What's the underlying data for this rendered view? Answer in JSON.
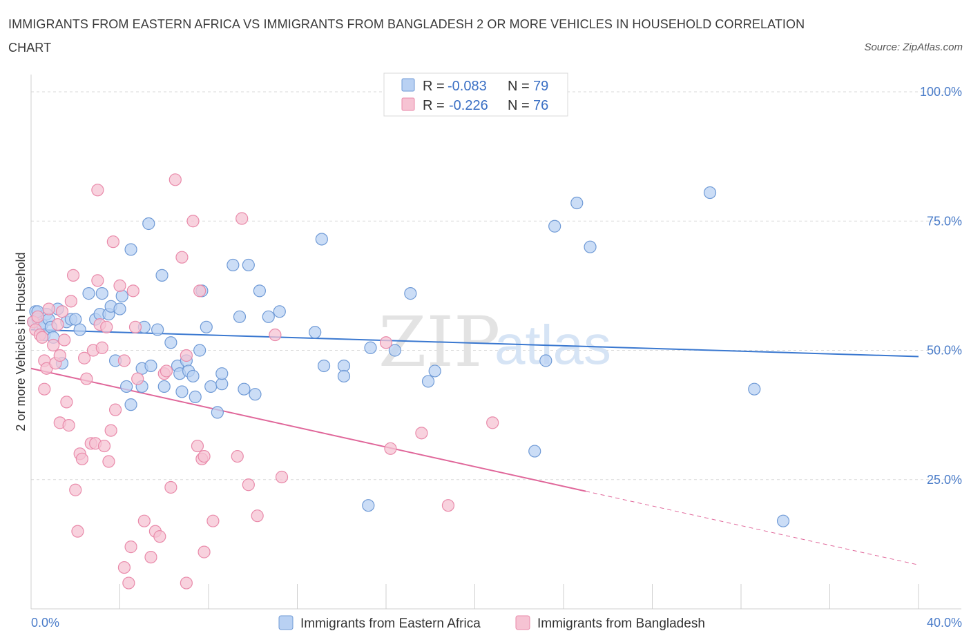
{
  "title": "IMMIGRANTS FROM EASTERN AFRICA VS IMMIGRANTS FROM BANGLADESH 2 OR MORE VEHICLES IN HOUSEHOLD CORRELATION CHART",
  "source": "Source: ZipAtlas.com",
  "watermark": {
    "part1": "ZIP",
    "part2": "atlas"
  },
  "legend": {
    "r_label": "R =",
    "n_label": "N =",
    "series": [
      {
        "r": "-0.083",
        "n": "79"
      },
      {
        "r": "-0.226",
        "n": "76"
      }
    ]
  },
  "colors": {
    "blue_fill": "#b9d1f3",
    "blue_stroke": "#6f9ad6",
    "blue_line": "#3a78d0",
    "pink_fill": "#f6c3d3",
    "pink_stroke": "#e98aaa",
    "pink_line": "#e0679a",
    "grid": "#d9d9d9",
    "axis_label": "#4a7cc9"
  },
  "chart_data": {
    "type": "scatter",
    "title": "IMMIGRANTS FROM EASTERN AFRICA VS IMMIGRANTS FROM BANGLADESH 2 OR MORE VEHICLES IN HOUSEHOLD CORRELATION CHART",
    "xlabel": "",
    "ylabel": "2 or more Vehicles in Household",
    "xlim": [
      0,
      40
    ],
    "ylim": [
      0,
      100
    ],
    "x_tick_labels": [
      "0.0%",
      "40.0%"
    ],
    "y_tick_labels": [
      "25.0%",
      "50.0%",
      "75.0%",
      "100.0%"
    ],
    "y_ticks": [
      25,
      50,
      75,
      100
    ],
    "legend_position": "top-center",
    "series": [
      {
        "name": "Immigrants from Eastern Africa",
        "r": -0.083,
        "n": 79,
        "trend": {
          "x": [
            0,
            40
          ],
          "y": [
            54.0,
            48.8
          ],
          "dashed_from": null
        },
        "points": [
          [
            0.1,
            55.5
          ],
          [
            0.2,
            57.5
          ],
          [
            0.3,
            56
          ],
          [
            0.4,
            54.5
          ],
          [
            0.5,
            55
          ],
          [
            0.6,
            53
          ],
          [
            0.7,
            57
          ],
          [
            0.8,
            56
          ],
          [
            0.9,
            54.5
          ],
          [
            1.0,
            52.5
          ],
          [
            1.2,
            58
          ],
          [
            1.4,
            47.5
          ],
          [
            1.6,
            55.5
          ],
          [
            1.8,
            56
          ],
          [
            2.0,
            56
          ],
          [
            2.2,
            54
          ],
          [
            2.6,
            61
          ],
          [
            2.9,
            56
          ],
          [
            3.1,
            57
          ],
          [
            3.2,
            61
          ],
          [
            3.5,
            57
          ],
          [
            3.6,
            58.5
          ],
          [
            3.8,
            48
          ],
          [
            4.0,
            58
          ],
          [
            4.1,
            60.5
          ],
          [
            4.3,
            43
          ],
          [
            4.5,
            39.5
          ],
          [
            4.5,
            69.5
          ],
          [
            5.0,
            46.5
          ],
          [
            5.0,
            43
          ],
          [
            5.1,
            54.5
          ],
          [
            5.3,
            74.5
          ],
          [
            5.4,
            47
          ],
          [
            5.7,
            54
          ],
          [
            5.9,
            64.5
          ],
          [
            6.0,
            43
          ],
          [
            6.3,
            51.5
          ],
          [
            6.6,
            47
          ],
          [
            6.7,
            45.5
          ],
          [
            6.8,
            42
          ],
          [
            7.0,
            48
          ],
          [
            7.1,
            46
          ],
          [
            7.3,
            45
          ],
          [
            7.4,
            41
          ],
          [
            7.6,
            50
          ],
          [
            7.7,
            61.5
          ],
          [
            7.9,
            54.5
          ],
          [
            8.1,
            43
          ],
          [
            8.4,
            38
          ],
          [
            8.6,
            43.5
          ],
          [
            8.6,
            45.5
          ],
          [
            9.1,
            66.5
          ],
          [
            9.4,
            56.5
          ],
          [
            9.6,
            42.5
          ],
          [
            9.8,
            66.5
          ],
          [
            10.1,
            41.5
          ],
          [
            10.3,
            61.5
          ],
          [
            10.7,
            56.5
          ],
          [
            11.2,
            57.5
          ],
          [
            12.8,
            53.5
          ],
          [
            13.1,
            71.5
          ],
          [
            13.2,
            47
          ],
          [
            14.1,
            47
          ],
          [
            14.1,
            45
          ],
          [
            15.2,
            20
          ],
          [
            15.3,
            50.5
          ],
          [
            16.4,
            50
          ],
          [
            17.1,
            61
          ],
          [
            17.9,
            44
          ],
          [
            18.2,
            46
          ],
          [
            22.7,
            30.5
          ],
          [
            23.2,
            48
          ],
          [
            23.6,
            74
          ],
          [
            24.6,
            78.5
          ],
          [
            25.2,
            70
          ],
          [
            30.6,
            80.5
          ],
          [
            32.6,
            42.5
          ],
          [
            33.9,
            17
          ],
          [
            0.3,
            57.5
          ]
        ]
      },
      {
        "name": "Immigrants from Bangladesh",
        "r": -0.226,
        "n": 76,
        "trend": {
          "x": [
            0,
            40
          ],
          "y": [
            46.5,
            8.5
          ],
          "dashed_from": 25
        },
        "points": [
          [
            0.1,
            55.5
          ],
          [
            0.2,
            54
          ],
          [
            0.3,
            56.5
          ],
          [
            0.4,
            53
          ],
          [
            0.5,
            52.5
          ],
          [
            0.6,
            48
          ],
          [
            0.6,
            42.5
          ],
          [
            0.7,
            46.5
          ],
          [
            0.8,
            58
          ],
          [
            1.0,
            51
          ],
          [
            1.1,
            47.5
          ],
          [
            1.2,
            55
          ],
          [
            1.3,
            36
          ],
          [
            1.4,
            57.5
          ],
          [
            1.5,
            52
          ],
          [
            1.6,
            40
          ],
          [
            1.7,
            35.5
          ],
          [
            1.8,
            59.5
          ],
          [
            1.9,
            64.5
          ],
          [
            2.0,
            23
          ],
          [
            2.1,
            15
          ],
          [
            2.2,
            30
          ],
          [
            2.3,
            29
          ],
          [
            2.4,
            48.5
          ],
          [
            2.5,
            44.5
          ],
          [
            2.7,
            32
          ],
          [
            2.8,
            50
          ],
          [
            2.9,
            32
          ],
          [
            3.0,
            81
          ],
          [
            3.0,
            63.5
          ],
          [
            3.1,
            55
          ],
          [
            3.2,
            50.5
          ],
          [
            3.3,
            31.5
          ],
          [
            3.4,
            54.5
          ],
          [
            3.5,
            28.5
          ],
          [
            3.6,
            34.5
          ],
          [
            3.7,
            71
          ],
          [
            3.8,
            38.5
          ],
          [
            4.0,
            62.5
          ],
          [
            4.2,
            48
          ],
          [
            4.2,
            8
          ],
          [
            4.4,
            5
          ],
          [
            4.5,
            12
          ],
          [
            4.6,
            61.5
          ],
          [
            4.7,
            54.5
          ],
          [
            4.8,
            44.5
          ],
          [
            5.1,
            17
          ],
          [
            5.4,
            10
          ],
          [
            5.6,
            15
          ],
          [
            5.8,
            14
          ],
          [
            6.0,
            45.5
          ],
          [
            6.1,
            46
          ],
          [
            6.3,
            23.5
          ],
          [
            6.5,
            83
          ],
          [
            6.8,
            68
          ],
          [
            7.0,
            49
          ],
          [
            7.0,
            5
          ],
          [
            7.3,
            75
          ],
          [
            7.5,
            31.5
          ],
          [
            7.6,
            61.5
          ],
          [
            7.7,
            29
          ],
          [
            7.8,
            29.5
          ],
          [
            7.8,
            11
          ],
          [
            8.2,
            17
          ],
          [
            9.3,
            29.5
          ],
          [
            9.5,
            75.5
          ],
          [
            9.8,
            24
          ],
          [
            10.2,
            18
          ],
          [
            11.0,
            53
          ],
          [
            11.3,
            25.5
          ],
          [
            16.0,
            51.5
          ],
          [
            16.2,
            31
          ],
          [
            17.6,
            34
          ],
          [
            18.8,
            20
          ],
          [
            20.8,
            36
          ],
          [
            1.3,
            49
          ]
        ]
      }
    ]
  },
  "bottom_legend": [
    "Immigrants from Eastern Africa",
    "Immigrants from Bangladesh"
  ]
}
